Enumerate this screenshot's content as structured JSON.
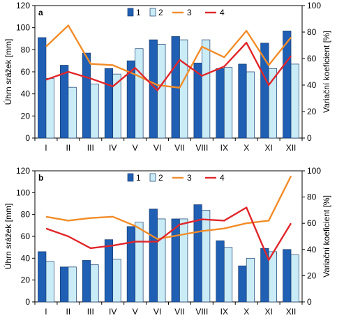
{
  "chart_data": [
    {
      "panel_label": "a",
      "type": "bar+line",
      "categories": [
        "I",
        "II",
        "III",
        "IV",
        "V",
        "VI",
        "VII",
        "VIII",
        "IX",
        "X",
        "XI",
        "XII"
      ],
      "ylabel": "Úhrn srážek [mm]",
      "y2label": "Variační koeficient [%]",
      "ylim": [
        0,
        120
      ],
      "y2lim": [
        0,
        100
      ],
      "yticks": [
        0,
        20,
        40,
        60,
        80,
        100,
        120
      ],
      "y2ticks": [
        0,
        20,
        40,
        60,
        80,
        100
      ],
      "grid": false,
      "legend_position": "top-right",
      "series": [
        {
          "name": "1",
          "type": "bar",
          "axis": "left",
          "color": "#1f5fb4",
          "values": [
            91,
            66,
            77,
            63,
            70,
            89,
            92,
            68,
            63,
            67,
            86,
            97
          ]
        },
        {
          "name": "2",
          "type": "bar",
          "axis": "left",
          "color": "#c9ecf7",
          "values": [
            54,
            46,
            49,
            58,
            81,
            85,
            89,
            89,
            64,
            60,
            63,
            67
          ]
        },
        {
          "name": "3",
          "type": "line",
          "axis": "right",
          "color": "#f28c28",
          "values": [
            69,
            85,
            56,
            55,
            48,
            40,
            38,
            69,
            61,
            81,
            55,
            76
          ]
        },
        {
          "name": "4",
          "type": "line",
          "axis": "right",
          "color": "#e0262b",
          "values": [
            44,
            50,
            45,
            39,
            53,
            36,
            59,
            47,
            54,
            72,
            40,
            62
          ]
        }
      ]
    },
    {
      "panel_label": "b",
      "type": "bar+line",
      "categories": [
        "I",
        "II",
        "III",
        "IV",
        "V",
        "VI",
        "VII",
        "VIII",
        "IX",
        "X",
        "XI",
        "XII"
      ],
      "ylabel": "Úhrn srážek [mm]",
      "y2label": "Variační koeficient [%]",
      "ylim": [
        0,
        120
      ],
      "y2lim": [
        0,
        100
      ],
      "yticks": [
        0,
        20,
        40,
        60,
        80,
        100,
        120
      ],
      "y2ticks": [
        0,
        20,
        40,
        60,
        80,
        100
      ],
      "grid": false,
      "legend_position": "top-right",
      "series": [
        {
          "name": "1",
          "type": "bar",
          "axis": "left",
          "color": "#1f5fb4",
          "values": [
            46,
            32,
            38,
            57,
            69,
            85,
            76,
            89,
            56,
            33,
            49,
            48
          ]
        },
        {
          "name": "2",
          "type": "bar",
          "axis": "left",
          "color": "#c9ecf7",
          "values": [
            37,
            32,
            34,
            39,
            73,
            76,
            76,
            84,
            50,
            40,
            46,
            43
          ]
        },
        {
          "name": "3",
          "type": "line",
          "axis": "right",
          "color": "#f28c28",
          "values": [
            65,
            62,
            64,
            65,
            58,
            48,
            51,
            54,
            56,
            60,
            62,
            96
          ]
        },
        {
          "name": "4",
          "type": "line",
          "axis": "right",
          "color": "#e0262b",
          "values": [
            56,
            50,
            41,
            43,
            46,
            46,
            59,
            63,
            62,
            72,
            32,
            60
          ]
        }
      ]
    }
  ]
}
